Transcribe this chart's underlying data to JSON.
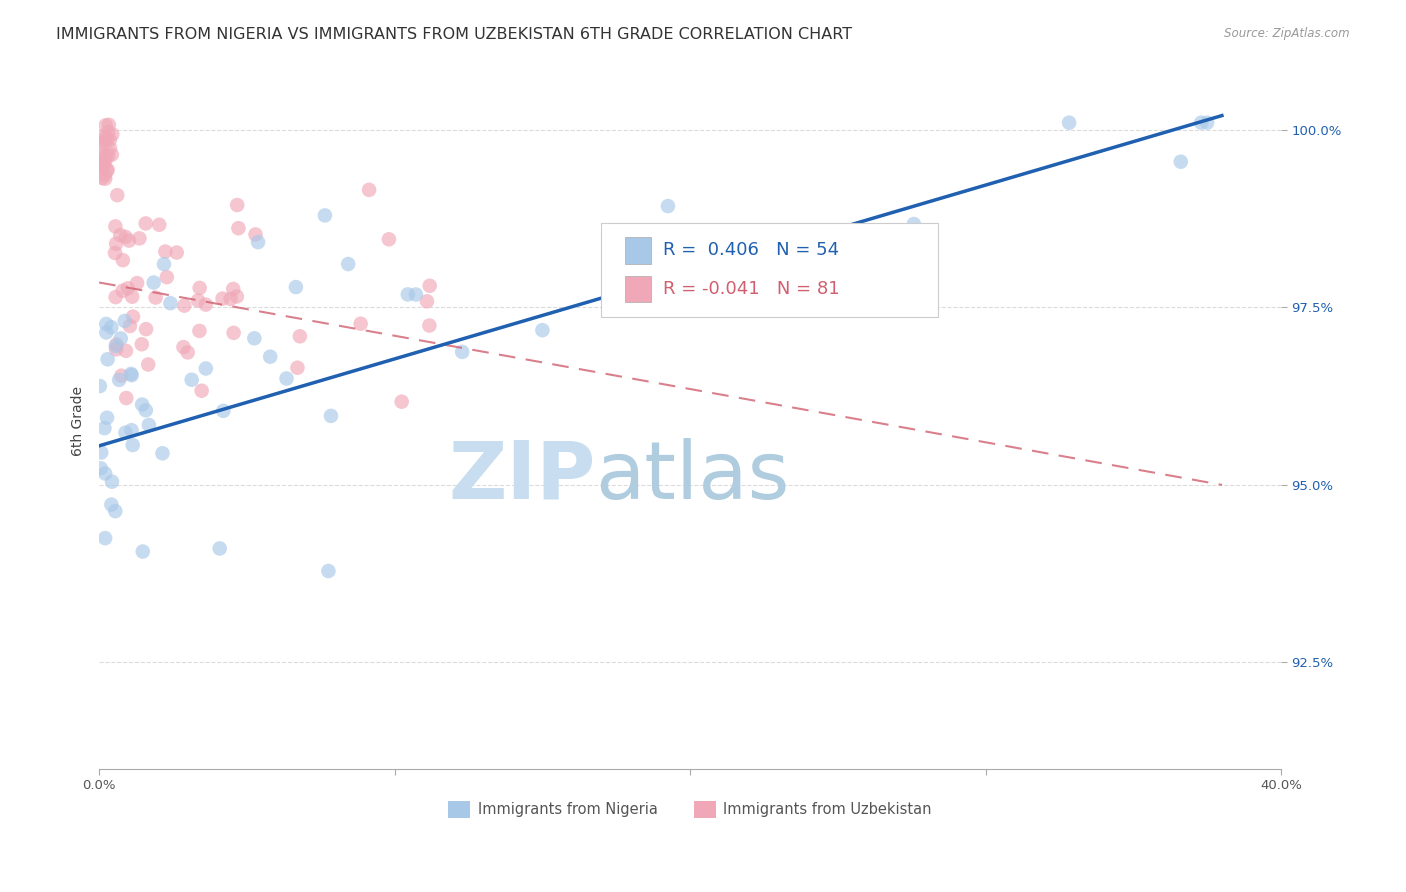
{
  "title": "IMMIGRANTS FROM NIGERIA VS IMMIGRANTS FROM UZBEKISTAN 6TH GRADE CORRELATION CHART",
  "source": "Source: ZipAtlas.com",
  "ylabel": "6th Grade",
  "x_min": 0.0,
  "x_max": 0.4,
  "y_min": 0.91,
  "y_max": 1.008,
  "y_ticks": [
    0.925,
    0.95,
    0.975,
    1.0
  ],
  "y_tick_labels": [
    "92.5%",
    "95.0%",
    "97.5%",
    "100.0%"
  ],
  "blue_R": 0.406,
  "blue_N": 54,
  "pink_R": -0.041,
  "pink_N": 81,
  "blue_color": "#A8C8E8",
  "pink_color": "#F0A8B8",
  "blue_line_color": "#2060B0",
  "pink_line_color": "#D06070",
  "blue_line_x": [
    0.0,
    0.38
  ],
  "blue_line_y": [
    0.9555,
    1.002
  ],
  "pink_line_x": [
    0.0,
    0.38
  ],
  "pink_line_y": [
    0.9785,
    0.95
  ],
  "watermark_zip": "ZIP",
  "watermark_atlas": "atlas",
  "watermark_color": "#C8DDEF",
  "grid_color": "#CCCCCC",
  "background_color": "#FFFFFF",
  "title_fontsize": 11.5,
  "axis_label_fontsize": 10,
  "tick_fontsize": 9.5,
  "legend_fontsize": 13
}
